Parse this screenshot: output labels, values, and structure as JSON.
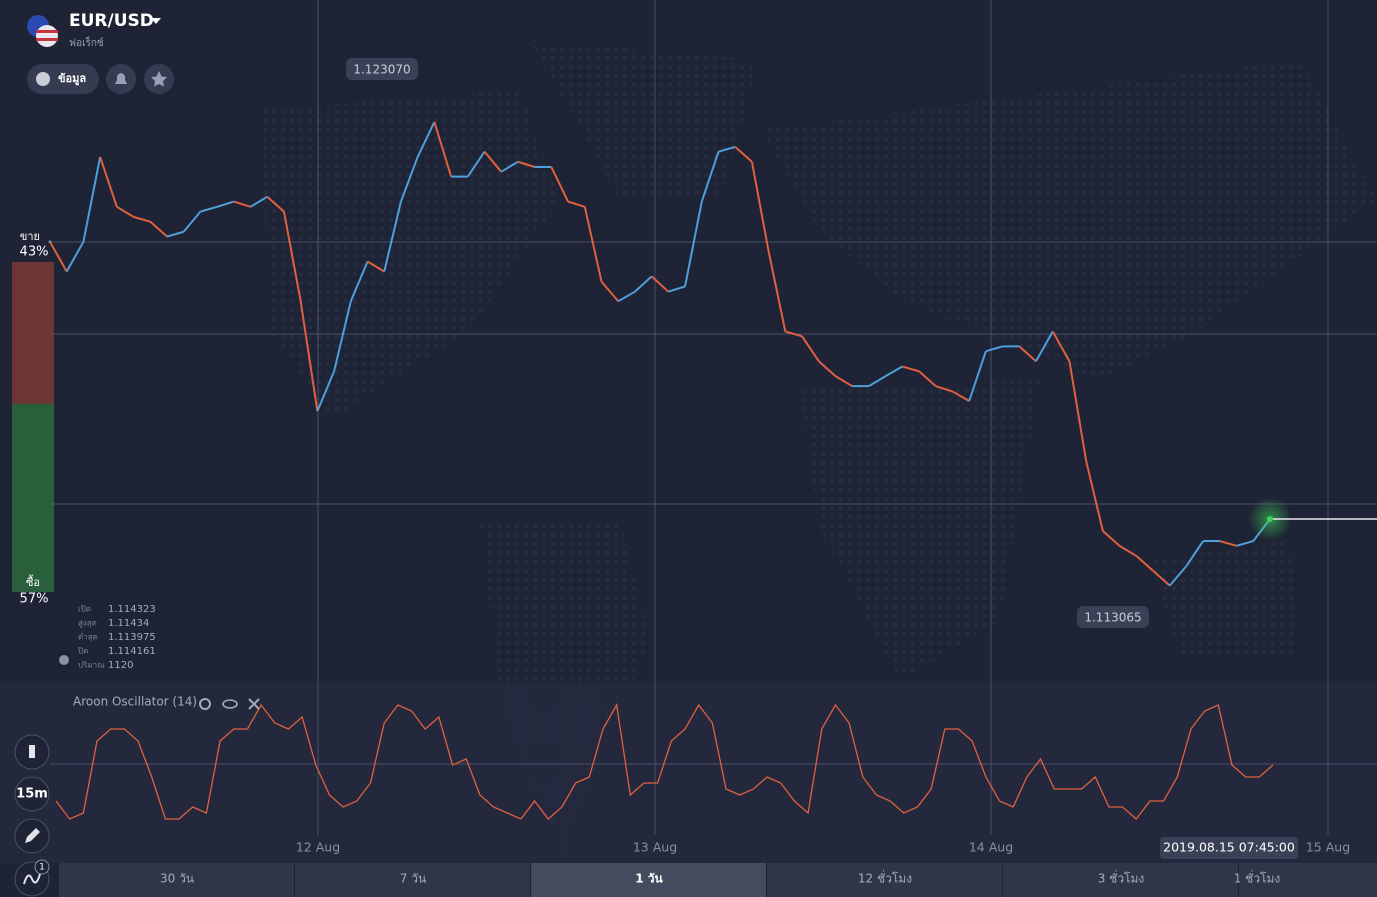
{
  "header": {
    "symbol": "EUR/USD",
    "category": "ฟอเร็กซ์",
    "info_button": "ข้อมูล"
  },
  "sentiment": {
    "sell_label": "ขาย",
    "sell_pct": 43,
    "sell_text": "43%",
    "buy_label": "ซื้อ",
    "buy_pct": 57,
    "buy_text": "57%"
  },
  "ohlc": {
    "rows": [
      [
        "เปิด",
        "1.114323"
      ],
      [
        "สูงสุด",
        "1.11434"
      ],
      [
        "ต่ำสุด",
        "1.113975"
      ],
      [
        "ปิด",
        "1.114161"
      ],
      [
        "ปริมาณ",
        "1120"
      ]
    ]
  },
  "chart_data": {
    "type": "line",
    "annotations": {
      "high": "1.123070",
      "low": "1.113065"
    },
    "ylim": [
      1.1111,
      1.1243
    ],
    "values": [
      1.1203,
      1.11968,
      1.1203,
      1.12207,
      1.12103,
      1.12082,
      1.12072,
      1.12041,
      1.12051,
      1.12093,
      1.12103,
      1.12114,
      1.12103,
      1.12124,
      1.12093,
      1.11906,
      1.11677,
      1.1176,
      1.11906,
      1.11989,
      1.11968,
      1.12114,
      1.12207,
      1.1228,
      1.12166,
      1.12166,
      1.12218,
      1.12176,
      1.12197,
      1.12186,
      1.12186,
      1.12114,
      1.12103,
      1.11947,
      1.11906,
      1.11926,
      1.11958,
      1.11926,
      1.11937,
      1.12114,
      1.12218,
      1.12228,
      1.12197,
      1.1201,
      1.11843,
      1.11833,
      1.11781,
      1.1175,
      1.11729,
      1.11729,
      1.1175,
      1.1177,
      1.1176,
      1.11729,
      1.11718,
      1.11698,
      1.11802,
      1.11812,
      1.11812,
      1.11781,
      1.11843,
      1.11781,
      1.11573,
      1.11427,
      1.11396,
      1.11375,
      1.11344,
      1.11313,
      1.11354,
      1.11406,
      1.11406,
      1.11396,
      1.11406,
      1.11452
    ],
    "x_ticks": [
      "12 Aug",
      "13 Aug",
      "14 Aug",
      "15 Aug"
    ],
    "cursor_time": "2019.08.15 07:45:00"
  },
  "indicator": {
    "type": "line",
    "name": "Aroon Oscillator (14)",
    "ylim": [
      -100,
      100
    ],
    "values": [
      -60,
      -90,
      -80,
      40,
      60,
      60,
      40,
      -20,
      -90,
      -90,
      -70,
      -80,
      40,
      60,
      60,
      100,
      70,
      60,
      80,
      0,
      -50,
      -70,
      -60,
      -30,
      70,
      100,
      90,
      60,
      80,
      0,
      10,
      -50,
      -70,
      -80,
      -90,
      -60,
      -90,
      -70,
      -30,
      -20,
      60,
      100,
      -50,
      -30,
      -30,
      40,
      60,
      100,
      70,
      -40,
      -50,
      -40,
      -20,
      -30,
      -60,
      -80,
      60,
      100,
      70,
      -20,
      -50,
      -60,
      -80,
      -70,
      -40,
      60,
      60,
      40,
      -20,
      -60,
      -70,
      -20,
      10,
      -40,
      -40,
      -40,
      -20,
      -70,
      -70,
      -90,
      -60,
      -60,
      -20,
      60,
      90,
      100,
      0,
      -20,
      -20,
      0
    ]
  },
  "toolbar": {
    "timeframe": "15m",
    "indicator_count": "1"
  },
  "tabs": [
    "30 วัน",
    "7 วัน",
    "1 วัน",
    "12 ชั่วโมง",
    "3 ชั่วโมง",
    "1 ชั่วโมง"
  ],
  "active_tab": 2
}
